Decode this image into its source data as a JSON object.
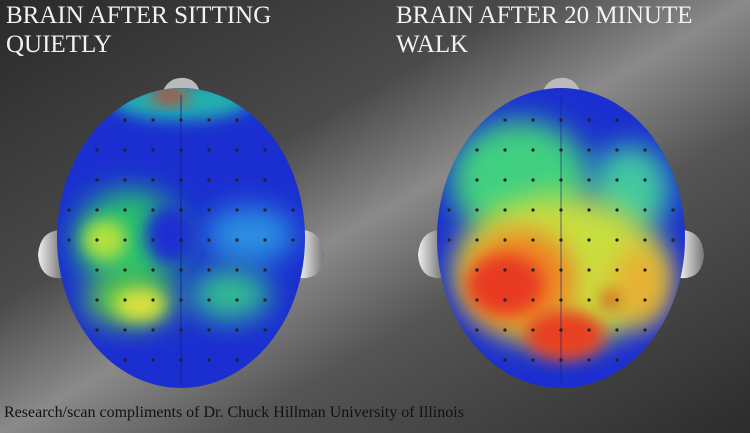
{
  "panels": [
    {
      "title_lines": [
        "BRAIN AFTER SITTING",
        "QUIETLY"
      ]
    },
    {
      "title_lines": [
        "BRAIN AFTER 20 MINUTE",
        "WALK"
      ]
    }
  ],
  "caption": "Research/scan compliments of Dr. Chuck Hillman University of Illinois"
}
